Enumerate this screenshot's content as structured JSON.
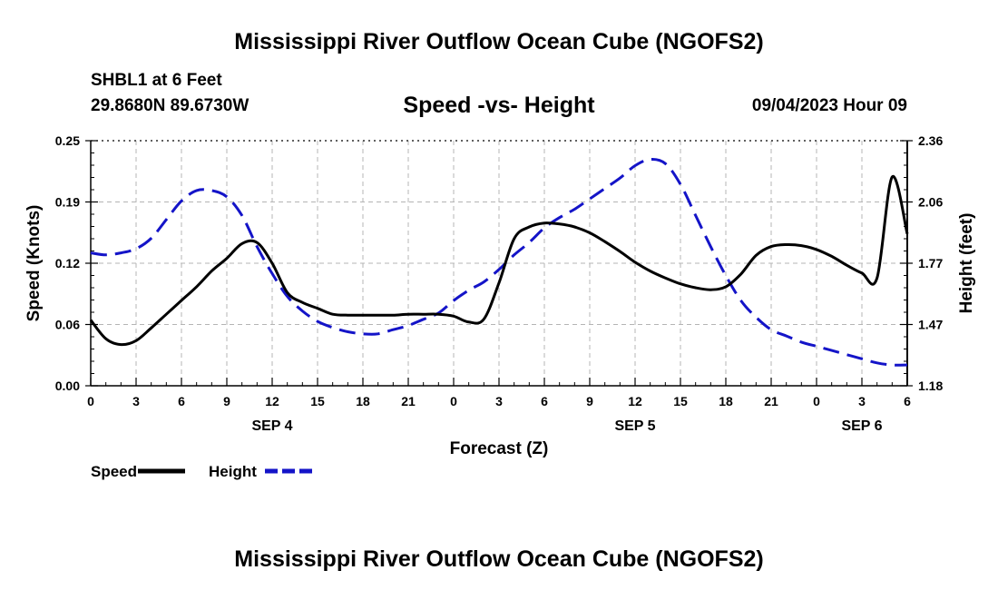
{
  "header": {
    "title": "Mississippi River Outflow Ocean Cube (NGOFS2)",
    "station_line": "SHBL1 at 6 Feet",
    "coords_line": "29.8680N  89.6730W",
    "subtitle": "Speed -vs- Height",
    "datetime": "09/04/2023 Hour 09"
  },
  "footer": {
    "title": "Mississippi River Outflow Ocean Cube (NGOFS2)"
  },
  "chart_data": {
    "type": "line",
    "title": "Speed -vs- Height",
    "xlabel": "Forecast (Z)",
    "ylabel": "Speed (Knots)",
    "y2label": "Height (feet)",
    "xlim": [
      0,
      54
    ],
    "ylim": [
      0,
      0.25
    ],
    "y2lim": [
      1.18,
      2.36
    ],
    "x_ticks": [
      0,
      3,
      6,
      9,
      12,
      15,
      18,
      21,
      24,
      27,
      30,
      33,
      36,
      39,
      42,
      45,
      48,
      51,
      54
    ],
    "x_tick_labels": [
      "0",
      "3",
      "6",
      "9",
      "12",
      "15",
      "18",
      "21",
      "0",
      "3",
      "6",
      "9",
      "12",
      "15",
      "18",
      "21",
      "0",
      "3",
      "6"
    ],
    "date_labels": [
      {
        "x": 12,
        "label": "SEP 4"
      },
      {
        "x": 36,
        "label": "SEP 5"
      },
      {
        "x": 51,
        "label": "SEP 6"
      }
    ],
    "y_ticks": [
      0,
      0.0625,
      0.125,
      0.1875,
      0.25
    ],
    "y_tick_labels": [
      "0.00",
      "0.06",
      "0.12",
      "0.19",
      "0.25"
    ],
    "y2_ticks": [
      1.18,
      1.475,
      1.77,
      2.065,
      2.36
    ],
    "y2_tick_labels": [
      "1.18",
      "1.47",
      "1.77",
      "2.06",
      "2.36"
    ],
    "grid": true,
    "legend_position": "bottom-left",
    "series": [
      {
        "name": "Speed",
        "axis": "left",
        "color": "#000000",
        "dash": "solid",
        "x": [
          0,
          1,
          2,
          3,
          4,
          5,
          6,
          7,
          8,
          9,
          10,
          11,
          12,
          13,
          14,
          15,
          16,
          17,
          18,
          19,
          20,
          21,
          22,
          23,
          24,
          25,
          26,
          27,
          28,
          29,
          30,
          31,
          32,
          33,
          34,
          35,
          36,
          37,
          38,
          39,
          40,
          41,
          42,
          43,
          44,
          45,
          46,
          47,
          48,
          49,
          50,
          51,
          52,
          53,
          54
        ],
        "values": [
          0.067,
          0.048,
          0.042,
          0.046,
          0.059,
          0.073,
          0.087,
          0.101,
          0.117,
          0.13,
          0.145,
          0.146,
          0.125,
          0.095,
          0.085,
          0.079,
          0.073,
          0.072,
          0.072,
          0.072,
          0.072,
          0.073,
          0.073,
          0.073,
          0.071,
          0.065,
          0.068,
          0.105,
          0.15,
          0.162,
          0.166,
          0.165,
          0.162,
          0.156,
          0.147,
          0.137,
          0.126,
          0.117,
          0.11,
          0.104,
          0.1,
          0.098,
          0.101,
          0.114,
          0.133,
          0.142,
          0.144,
          0.143,
          0.139,
          0.132,
          0.123,
          0.115,
          0.11,
          0.213,
          0.155
        ]
      },
      {
        "name": "Height",
        "axis": "right",
        "color": "#1414c8",
        "dash": "dashed",
        "x": [
          0,
          1,
          2,
          3,
          4,
          5,
          6,
          7,
          8,
          9,
          10,
          11,
          12,
          13,
          14,
          15,
          16,
          17,
          18,
          19,
          20,
          21,
          22,
          23,
          24,
          25,
          26,
          27,
          28,
          29,
          30,
          31,
          32,
          33,
          34,
          35,
          36,
          37,
          38,
          39,
          40,
          41,
          42,
          43,
          44,
          45,
          46,
          47,
          48,
          49,
          50,
          51,
          52,
          53,
          54
        ],
        "values": [
          1.82,
          1.81,
          1.82,
          1.84,
          1.89,
          1.98,
          2.07,
          2.12,
          2.12,
          2.09,
          2.0,
          1.85,
          1.72,
          1.61,
          1.54,
          1.49,
          1.46,
          1.44,
          1.43,
          1.43,
          1.45,
          1.47,
          1.5,
          1.53,
          1.59,
          1.64,
          1.68,
          1.74,
          1.81,
          1.87,
          1.94,
          1.99,
          2.03,
          2.08,
          2.13,
          2.18,
          2.24,
          2.27,
          2.25,
          2.15,
          2.0,
          1.85,
          1.71,
          1.59,
          1.51,
          1.45,
          1.42,
          1.39,
          1.37,
          1.35,
          1.33,
          1.31,
          1.29,
          1.28,
          1.28
        ]
      }
    ]
  }
}
